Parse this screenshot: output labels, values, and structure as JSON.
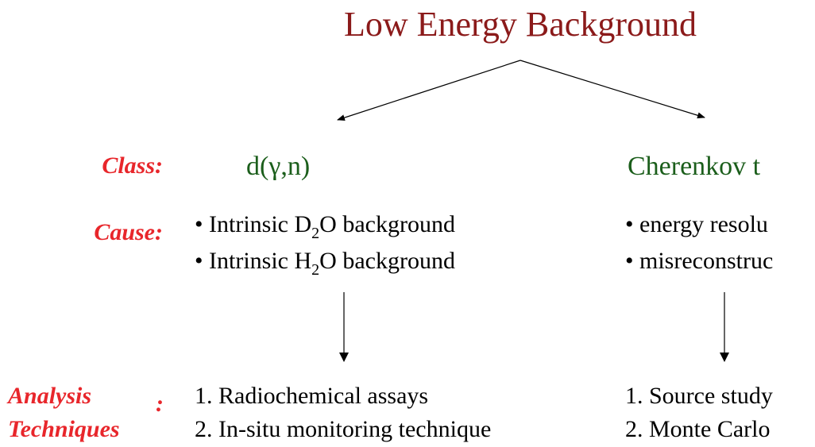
{
  "title": "Low Energy Background",
  "labels": {
    "class": "Class:",
    "cause": "Cause:",
    "analysis": "Analysis",
    "techniques": "Techniques",
    "colon": ":"
  },
  "columns": [
    {
      "class": "d(γ,n)",
      "causes": [
        {
          "prefix": "• Intrinsic D",
          "sub": "2",
          "suffix": "O background"
        },
        {
          "prefix": "• Intrinsic H",
          "sub": "2",
          "suffix": "O background"
        }
      ],
      "techniques": [
        "1. Radiochemical assays",
        "2. In-situ monitoring technique"
      ]
    },
    {
      "class": "Cherenkov t",
      "causes": [
        {
          "prefix": "• energy resolu"
        },
        {
          "prefix": "• misreconstruc"
        }
      ],
      "techniques": [
        "1. Source study",
        "2. Monte Carlo"
      ]
    }
  ]
}
